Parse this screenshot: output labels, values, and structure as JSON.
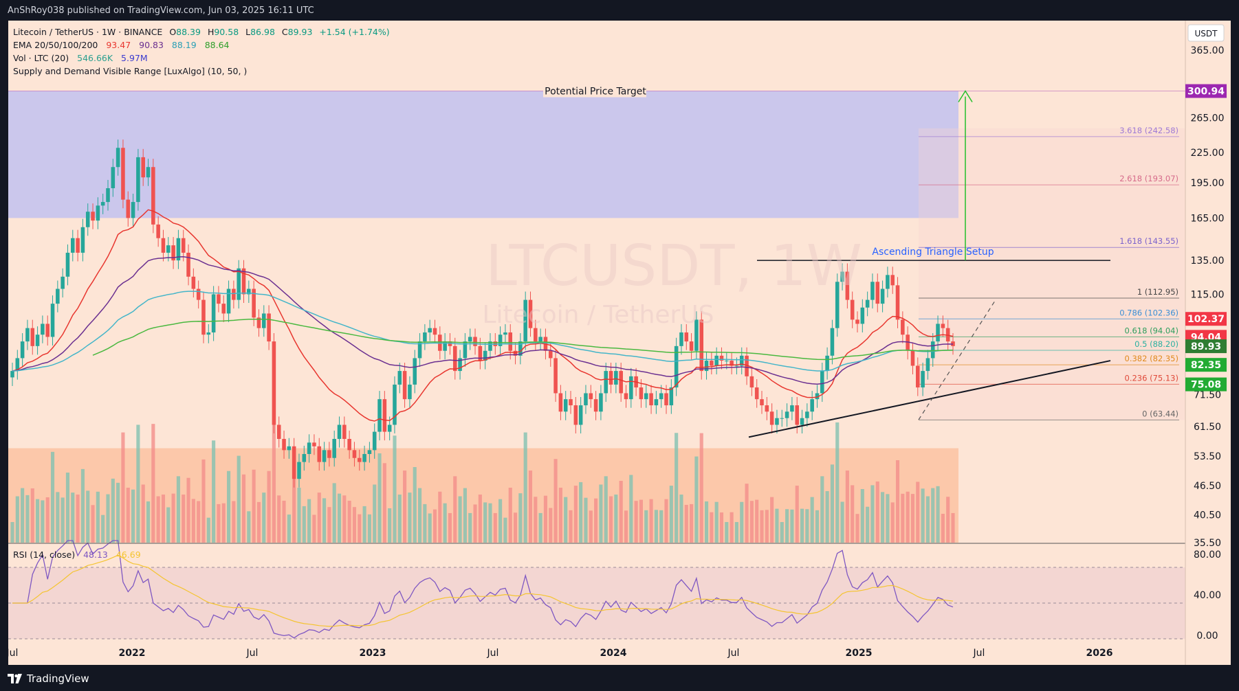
{
  "header": {
    "published": "AnShRoy038 published on TradingView.com, Jun 03, 2025 16:11 UTC"
  },
  "footer": {
    "brand": "TradingView"
  },
  "legend": {
    "symbol": "Litecoin / TetherUS · 1W · BINANCE",
    "ohlc": {
      "o_label": "O",
      "o": "88.39",
      "h_label": "H",
      "h": "90.58",
      "l_label": "L",
      "l": "86.98",
      "c_label": "C",
      "c": "89.93",
      "change": "+1.54 (+1.74%)"
    },
    "ema": {
      "label": "EMA 20/50/100/200",
      "v20": "93.47",
      "v50": "90.83",
      "v100": "88.19",
      "v200": "88.64"
    },
    "vol": {
      "label": "Vol · LTC (20)",
      "v1": "546.66K",
      "v2": "5.97M"
    },
    "sd": {
      "label": "Supply and Demand Visible Range [LuxAlgo] (10, 50, )"
    }
  },
  "watermark": {
    "line1": "LTCUSDT, 1W",
    "line2": "Litecoin / TetherUS"
  },
  "annotations": {
    "target": "Potential Price Target",
    "triangle": "Ascending Triangle Setup"
  },
  "rsi": {
    "label": "RSI (14, close)",
    "v1": "48.13",
    "v2": "46.69"
  },
  "colors": {
    "bg": "#fde5d6",
    "up": "#82c2b1",
    "down": "#f28e8b",
    "ema20": "#e8362f",
    "ema50": "#6a2f90",
    "ema100": "#43b5c9",
    "ema200": "#49b83f",
    "supply": "#c2c2f0",
    "demand": "#fbbc97",
    "rsi": "#7e57c2"
  },
  "chart_data": {
    "type": "candlestick",
    "symbol": "LTCUSDT",
    "timeframe": "1W",
    "currency": "USDT",
    "yscale": "log",
    "ylim": [
      35.5,
      420
    ],
    "y_ticks": [
      "365.00",
      "265.00",
      "225.00",
      "195.00",
      "165.00",
      "135.00",
      "115.00",
      "71.50",
      "61.50",
      "53.50",
      "46.50",
      "40.50",
      "35.50"
    ],
    "x_ticks": [
      "Jul",
      "2022",
      "Jul",
      "2023",
      "Jul",
      "2024",
      "Jul",
      "2025",
      "Jul",
      "2026"
    ],
    "price_badges": [
      {
        "label": "300.94",
        "value": 300.94,
        "color": "#9c27b0"
      },
      {
        "label": "102.37",
        "value": 102.37,
        "color": "#f23645"
      },
      {
        "label": "94.04",
        "value": 94.04,
        "color": "#f23645"
      },
      {
        "label": "89.93",
        "value": 89.93,
        "color": "#2e7d32"
      },
      {
        "label": "82.35",
        "value": 82.35,
        "color": "#22ab33"
      },
      {
        "label": "75.08",
        "value": 75.08,
        "color": "#22ab33"
      }
    ],
    "fib_levels": [
      {
        "label": "3.618 (242.58)",
        "value": 242.58,
        "color": "#9f7bd6"
      },
      {
        "label": "2.618 (193.07)",
        "value": 193.07,
        "color": "#d66a8a"
      },
      {
        "label": "1.618 (143.55)",
        "value": 143.55,
        "color": "#7b62cc"
      },
      {
        "label": "1 (112.95)",
        "value": 112.95,
        "color": "#444444"
      },
      {
        "label": "0.786 (102.36)",
        "value": 102.36,
        "color": "#3a8fd6"
      },
      {
        "label": "0.618 (94.04)",
        "value": 94.04,
        "color": "#2e9e5e"
      },
      {
        "label": "0.5 (88.20)",
        "value": 88.2,
        "color": "#2ab0a0"
      },
      {
        "label": "0.382 (82.35)",
        "value": 82.35,
        "color": "#e08a1e"
      },
      {
        "label": "0.236 (75.13)",
        "value": 75.13,
        "color": "#e04a3a"
      },
      {
        "label": "0 (63.44)",
        "value": 63.44,
        "color": "#666666"
      }
    ],
    "supply_zone": {
      "low": 165,
      "high": 300.94
    },
    "demand_zone": {
      "low": 35.5,
      "high": 55.5
    },
    "resistance": 135,
    "target": 300.94,
    "candles_close": [
      80,
      85,
      92,
      98,
      90,
      95,
      100,
      94,
      110,
      118,
      125,
      140,
      150,
      140,
      158,
      170,
      163,
      175,
      178,
      190,
      210,
      230,
      180,
      165,
      178,
      220,
      200,
      210,
      160,
      150,
      140,
      145,
      135,
      150,
      140,
      125,
      118,
      112,
      95,
      96,
      115,
      110,
      105,
      118,
      112,
      130,
      115,
      118,
      103,
      98,
      105,
      92,
      62,
      58,
      55,
      56,
      48,
      52,
      54,
      57,
      56,
      52,
      55,
      53,
      58,
      62,
      58,
      55,
      53,
      52,
      54,
      55,
      60,
      70,
      60,
      62,
      75,
      80,
      70,
      75,
      85,
      92,
      96,
      98,
      95,
      88,
      92,
      90,
      80,
      85,
      92,
      94,
      90,
      84,
      88,
      92,
      90,
      95,
      96,
      88,
      86,
      92,
      112,
      98,
      92,
      94,
      88,
      85,
      72,
      66,
      70,
      68,
      62,
      68,
      72,
      70,
      66,
      72,
      80,
      75,
      80,
      72,
      70,
      78,
      74,
      70,
      72,
      68,
      70,
      72,
      68,
      74,
      90,
      96,
      92,
      88,
      102,
      80,
      84,
      82,
      86,
      84,
      84,
      82,
      82,
      86,
      78,
      74,
      70,
      68,
      66,
      62,
      64,
      64,
      66,
      68,
      62,
      64,
      66,
      70,
      72,
      80,
      86,
      98,
      122,
      128,
      112,
      102,
      100,
      108,
      112,
      122,
      110,
      118,
      126,
      120,
      102,
      95,
      88,
      82,
      74,
      80,
      85,
      92,
      100,
      98,
      92,
      90
    ]
  }
}
